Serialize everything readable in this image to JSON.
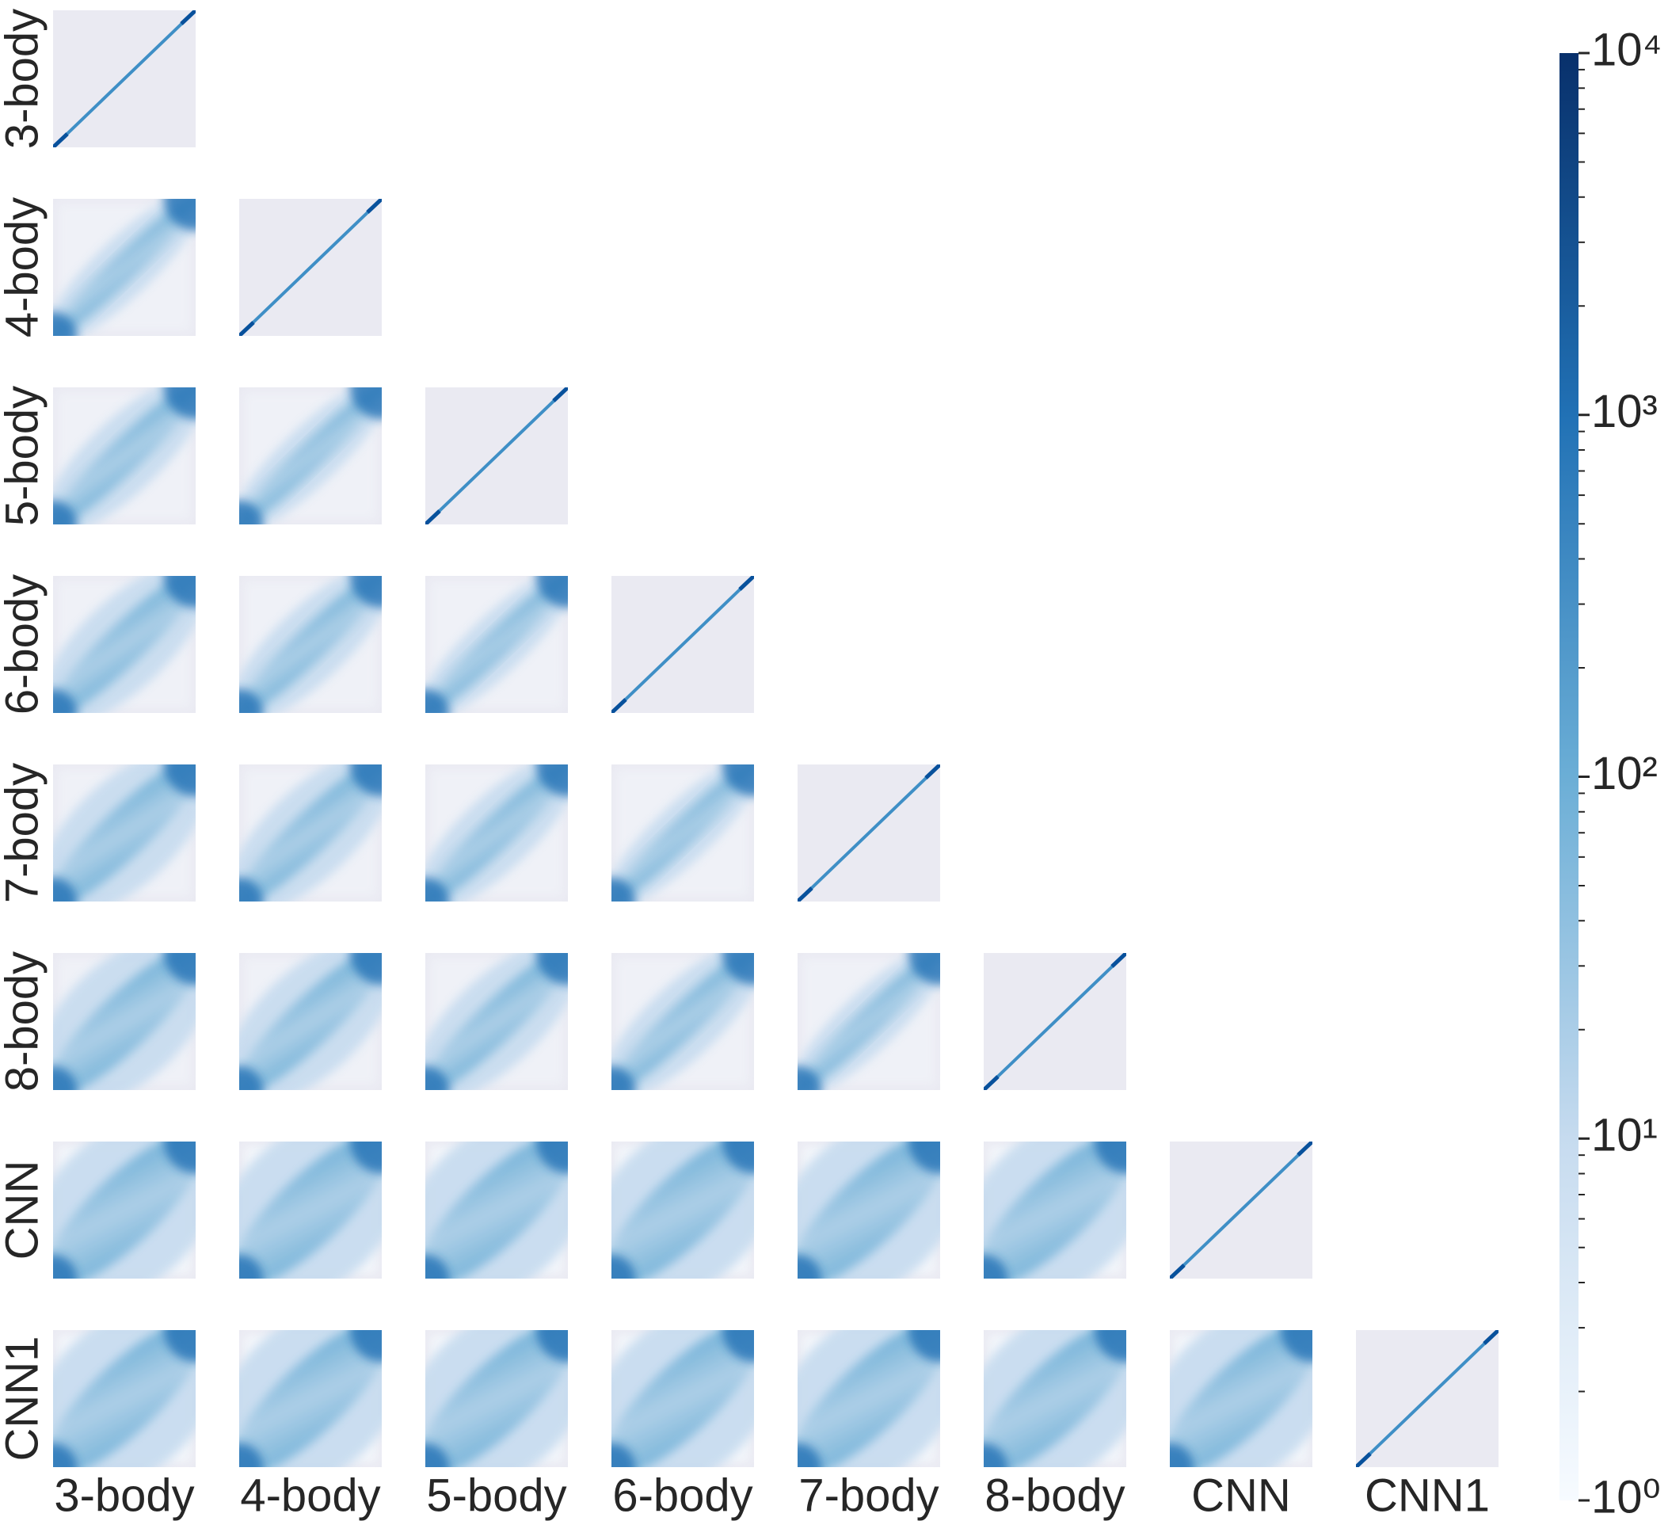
{
  "chart_data": {
    "type": "pairplot-hist2d",
    "variables": [
      "3-body",
      "4-body",
      "5-body",
      "6-body",
      "7-body",
      "8-body",
      "CNN",
      "CNN1"
    ],
    "colorbar": {
      "scale": "log",
      "clim": [
        1,
        10000
      ],
      "cmap": [
        "#f7fbff",
        "#c6dbef",
        "#6baed6",
        "#2171b5",
        "#08306b"
      ],
      "ticks": [
        {
          "value": 1,
          "label": "10⁰"
        },
        {
          "value": 10,
          "label": "10¹"
        },
        {
          "value": 100,
          "label": "10²"
        },
        {
          "value": 1000,
          "label": "10³"
        },
        {
          "value": 10000,
          "label": "10⁴"
        }
      ]
    },
    "panel_background": "#eaeaf2"
  }
}
